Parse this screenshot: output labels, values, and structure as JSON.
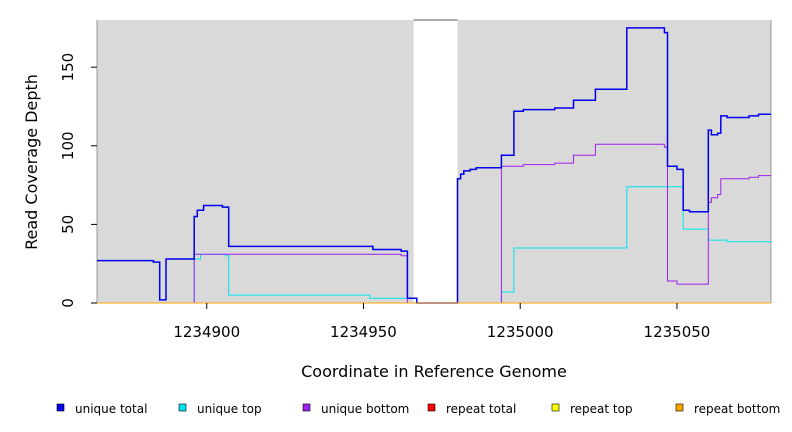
{
  "chart_data": {
    "type": "line",
    "title": "",
    "xlabel": "Coordinate in Reference Genome",
    "ylabel": "Read Coverage Depth",
    "xlim": [
      1234865,
      1235080
    ],
    "ylim": [
      0,
      180
    ],
    "x_ticks": [
      1234900,
      1234950,
      1235000,
      1235050
    ],
    "x_tick_labels": [
      "1234900",
      "1234950",
      "1235000",
      "1235050"
    ],
    "y_ticks": [
      0,
      50,
      100,
      150
    ],
    "y_tick_labels": [
      "0",
      "50",
      "100",
      "150"
    ],
    "grid": false,
    "background_color": "#d9d9d9",
    "gap_regions": [
      [
        1234966,
        1234980
      ]
    ],
    "legend_position": "bottom",
    "series": [
      {
        "name": "unique total",
        "color": "#0000ee",
        "points": [
          [
            1234865,
            27
          ],
          [
            1234883,
            27
          ],
          [
            1234883,
            26
          ],
          [
            1234885,
            26
          ],
          [
            1234885,
            2
          ],
          [
            1234887,
            2
          ],
          [
            1234887,
            28
          ],
          [
            1234896,
            28
          ],
          [
            1234896,
            55
          ],
          [
            1234897,
            55
          ],
          [
            1234897,
            59
          ],
          [
            1234899,
            59
          ],
          [
            1234899,
            62
          ],
          [
            1234905,
            62
          ],
          [
            1234905,
            61
          ],
          [
            1234907,
            61
          ],
          [
            1234907,
            36
          ],
          [
            1234953,
            36
          ],
          [
            1234953,
            34
          ],
          [
            1234962,
            34
          ],
          [
            1234962,
            33
          ],
          [
            1234964,
            33
          ],
          [
            1234964,
            3
          ],
          [
            1234967,
            3
          ],
          [
            1234967,
            0
          ],
          [
            1234980,
            0
          ],
          [
            1234980,
            79
          ],
          [
            1234981,
            79
          ],
          [
            1234981,
            82
          ],
          [
            1234982,
            82
          ],
          [
            1234982,
            84
          ],
          [
            1234984,
            84
          ],
          [
            1234984,
            85
          ],
          [
            1234986,
            85
          ],
          [
            1234986,
            86
          ],
          [
            1234994,
            86
          ],
          [
            1234994,
            94
          ],
          [
            1234998,
            94
          ],
          [
            1234998,
            122
          ],
          [
            1235001,
            122
          ],
          [
            1235001,
            123
          ],
          [
            1235011,
            123
          ],
          [
            1235011,
            124
          ],
          [
            1235017,
            124
          ],
          [
            1235017,
            129
          ],
          [
            1235024,
            129
          ],
          [
            1235024,
            136
          ],
          [
            1235034,
            136
          ],
          [
            1235034,
            175
          ],
          [
            1235046,
            175
          ],
          [
            1235046,
            172
          ],
          [
            1235047,
            172
          ],
          [
            1235047,
            87
          ],
          [
            1235050,
            87
          ],
          [
            1235050,
            85
          ],
          [
            1235052,
            85
          ],
          [
            1235052,
            59
          ],
          [
            1235054,
            59
          ],
          [
            1235054,
            58
          ],
          [
            1235060,
            58
          ],
          [
            1235060,
            110
          ],
          [
            1235061,
            110
          ],
          [
            1235061,
            107
          ],
          [
            1235063,
            107
          ],
          [
            1235063,
            108
          ],
          [
            1235064,
            108
          ],
          [
            1235064,
            119
          ],
          [
            1235066,
            119
          ],
          [
            1235066,
            118
          ],
          [
            1235073,
            118
          ],
          [
            1235073,
            119
          ],
          [
            1235076,
            119
          ],
          [
            1235076,
            120
          ],
          [
            1235080,
            120
          ]
        ]
      },
      {
        "name": "unique top",
        "color": "#00e5ee",
        "points": [
          [
            1234865,
            0
          ],
          [
            1234896,
            0
          ],
          [
            1234896,
            28
          ],
          [
            1234898,
            28
          ],
          [
            1234898,
            31
          ],
          [
            1234906,
            31
          ],
          [
            1234906,
            30
          ],
          [
            1234907,
            30
          ],
          [
            1234907,
            5
          ],
          [
            1234952,
            5
          ],
          [
            1234952,
            3
          ],
          [
            1234964,
            3
          ],
          [
            1234964,
            0
          ],
          [
            1234994,
            0
          ],
          [
            1234994,
            7
          ],
          [
            1234998,
            7
          ],
          [
            1234998,
            35
          ],
          [
            1235034,
            35
          ],
          [
            1235034,
            74
          ],
          [
            1235052,
            74
          ],
          [
            1235052,
            47
          ],
          [
            1235060,
            47
          ],
          [
            1235060,
            40
          ],
          [
            1235066,
            40
          ],
          [
            1235066,
            39
          ],
          [
            1235080,
            39
          ]
        ]
      },
      {
        "name": "unique bottom",
        "color": "#a020f0",
        "points": [
          [
            1234865,
            0
          ],
          [
            1234896,
            0
          ],
          [
            1234896,
            31
          ],
          [
            1234962,
            31
          ],
          [
            1234962,
            30
          ],
          [
            1234964,
            30
          ],
          [
            1234964,
            0
          ],
          [
            1234994,
            0
          ],
          [
            1234994,
            87
          ],
          [
            1235001,
            87
          ],
          [
            1235001,
            88
          ],
          [
            1235011,
            88
          ],
          [
            1235011,
            89
          ],
          [
            1235017,
            89
          ],
          [
            1235017,
            94
          ],
          [
            1235024,
            94
          ],
          [
            1235024,
            101
          ],
          [
            1235046,
            101
          ],
          [
            1235046,
            99
          ],
          [
            1235047,
            99
          ],
          [
            1235047,
            14
          ],
          [
            1235050,
            14
          ],
          [
            1235050,
            12
          ],
          [
            1235060,
            12
          ],
          [
            1235060,
            64
          ],
          [
            1235061,
            64
          ],
          [
            1235061,
            67
          ],
          [
            1235063,
            67
          ],
          [
            1235063,
            69
          ],
          [
            1235064,
            69
          ],
          [
            1235064,
            79
          ],
          [
            1235073,
            79
          ],
          [
            1235073,
            80
          ],
          [
            1235076,
            80
          ],
          [
            1235076,
            81
          ],
          [
            1235080,
            81
          ]
        ]
      },
      {
        "name": "repeat total",
        "color": "#ff0000",
        "points": [
          [
            1234865,
            0
          ],
          [
            1235080,
            0
          ]
        ]
      },
      {
        "name": "repeat top",
        "color": "#ffff00",
        "points": [
          [
            1234865,
            0
          ],
          [
            1235080,
            0
          ]
        ]
      },
      {
        "name": "repeat bottom",
        "color": "#ffa500",
        "points": [
          [
            1234865,
            0
          ],
          [
            1235080,
            0
          ]
        ]
      }
    ]
  }
}
